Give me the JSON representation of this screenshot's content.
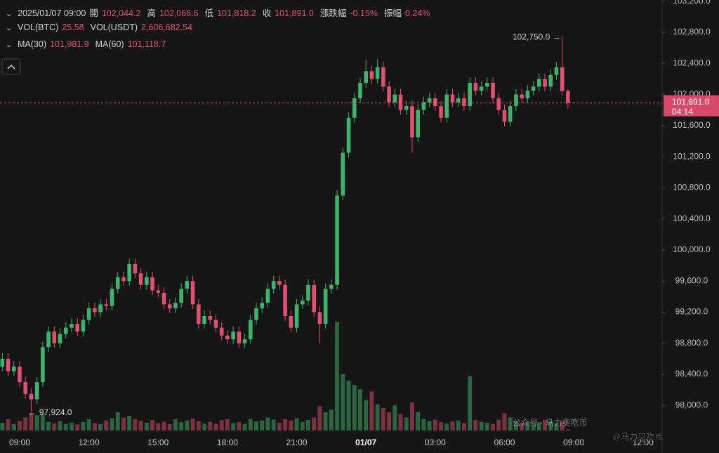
{
  "chart_data": {
    "type": "candlestick",
    "header": {
      "time": "2025/01/07 09:00",
      "fields": [
        {
          "name": "開",
          "value": "102,044.2"
        },
        {
          "name": "高",
          "value": "102,066.6"
        },
        {
          "name": "低",
          "value": "101,818.2"
        },
        {
          "name": "收",
          "value": "101,891.0"
        },
        {
          "name": "漲跌幅",
          "value": "-0.15%"
        },
        {
          "name": "振幅",
          "value": "0.24%"
        }
      ]
    },
    "volume_legend": [
      {
        "name": "VOL(BTC)",
        "value": "25.58"
      },
      {
        "name": "VOL(USDT)",
        "value": "2,606,682.54"
      }
    ],
    "ma_legend": [
      {
        "name": "MA(30)",
        "value": "101,981.9"
      },
      {
        "name": "MA(60)",
        "value": "101,118.7"
      }
    ],
    "categories": [
      null,
      null,
      null,
      "09:00",
      null,
      null,
      null,
      null,
      null,
      null,
      null,
      null,
      null,
      null,
      null,
      "12:00",
      null,
      null,
      null,
      null,
      null,
      null,
      null,
      null,
      null,
      null,
      null,
      "15:00",
      null,
      null,
      null,
      null,
      null,
      null,
      null,
      null,
      null,
      null,
      null,
      "18:00",
      null,
      null,
      null,
      null,
      null,
      null,
      null,
      null,
      null,
      null,
      null,
      "21:00",
      null,
      null,
      null,
      null,
      null,
      null,
      null,
      null,
      null,
      null,
      null,
      "01/07",
      null,
      null,
      null,
      null,
      null,
      null,
      null,
      null,
      null,
      null,
      null,
      "03:00",
      null,
      null,
      null,
      null,
      null,
      null,
      null,
      null,
      null,
      null,
      null,
      "06:00",
      null,
      null,
      null,
      null,
      null,
      null,
      null,
      null,
      null,
      null,
      null,
      "09:00",
      null,
      null,
      null,
      null,
      null,
      null,
      null,
      null,
      null,
      null,
      null,
      "12:00"
    ],
    "open": [
      98500,
      98600,
      98440,
      98500,
      98300,
      98150,
      98080,
      98300,
      98750,
      98950,
      98800,
      98920,
      99000,
      99050,
      98950,
      99100,
      99250,
      99200,
      99300,
      99280,
      99500,
      99650,
      99600,
      99820,
      99700,
      99550,
      99650,
      99480,
      99450,
      99300,
      99250,
      99320,
      99500,
      99600,
      99300,
      99050,
      99150,
      99100,
      99000,
      98900,
      98850,
      98950,
      98800,
      98850,
      99100,
      99250,
      99320,
      99500,
      99600,
      99550,
      99150,
      99000,
      99300,
      99350,
      99550,
      99200,
      99050,
      99500,
      99550,
      100700,
      101250,
      101700,
      101950,
      102150,
      102300,
      102200,
      102350,
      102100,
      101900,
      102000,
      101800,
      101850,
      101450,
      101800,
      101900,
      101950,
      101850,
      101700,
      102000,
      101900,
      101950,
      101850,
      102150,
      102050,
      102100,
      102150,
      101950,
      101800,
      101650,
      101850,
      102000,
      101950,
      102050,
      102100,
      102200,
      102100,
      102250,
      102350,
      102044.2,
      null,
      null,
      null,
      null,
      null,
      null,
      null,
      null,
      null,
      null,
      null,
      null,
      null
    ],
    "high": [
      98670,
      98670,
      98570,
      98570,
      98370,
      98220,
      98370,
      98820,
      99020,
      99020,
      98990,
      99070,
      99120,
      99120,
      99170,
      99320,
      99320,
      99370,
      99370,
      99570,
      99720,
      99720,
      99890,
      99890,
      99770,
      99720,
      99720,
      99550,
      99520,
      99370,
      99390,
      99570,
      99670,
      99670,
      99370,
      99220,
      99220,
      99170,
      99070,
      98970,
      99020,
      99020,
      98920,
      99170,
      99320,
      99390,
      99570,
      99670,
      99670,
      99620,
      99220,
      99370,
      99420,
      99620,
      99620,
      99270,
      99570,
      99620,
      100770,
      101320,
      101770,
      102020,
      102220,
      102450,
      102370,
      102450,
      102420,
      102170,
      102070,
      102070,
      101920,
      101920,
      101870,
      101970,
      102020,
      102020,
      101920,
      102070,
      102070,
      102020,
      102020,
      102220,
      102220,
      102170,
      102220,
      102220,
      102020,
      101870,
      101920,
      102070,
      102070,
      102120,
      102170,
      102270,
      102270,
      102320,
      102420,
      102750,
      102066.6,
      null,
      null,
      null,
      null,
      null,
      null,
      null,
      null,
      null,
      null,
      null,
      null,
      null
    ],
    "low": [
      98440,
      98380,
      98380,
      98240,
      98090,
      97924,
      98020,
      98240,
      98690,
      98740,
      98740,
      98860,
      98940,
      98890,
      98890,
      99040,
      99140,
      99140,
      99220,
      99220,
      99440,
      99540,
      99540,
      99640,
      99490,
      99490,
      99420,
      99390,
      99240,
      99190,
      99190,
      99260,
      99440,
      99240,
      98990,
      98990,
      99040,
      98940,
      98840,
      98790,
      98790,
      98740,
      98740,
      98790,
      99040,
      99190,
      99260,
      99440,
      99490,
      99090,
      98940,
      98940,
      99240,
      99290,
      99140,
      98800,
      98990,
      99440,
      99490,
      100640,
      101190,
      101640,
      101890,
      102090,
      102140,
      102140,
      102040,
      101840,
      101840,
      101740,
      101740,
      101250,
      101390,
      101740,
      101840,
      101790,
      101640,
      101640,
      101840,
      101840,
      101790,
      101790,
      101990,
      101990,
      102040,
      101890,
      101740,
      101590,
      101590,
      101790,
      101890,
      101890,
      101990,
      102040,
      102040,
      102040,
      102190,
      101990,
      101818.2,
      null,
      null,
      null,
      null,
      null,
      null,
      null,
      null,
      null,
      null,
      null,
      null,
      null
    ],
    "close": [
      98600,
      98440,
      98500,
      98300,
      98150,
      98080,
      98300,
      98750,
      98950,
      98800,
      98920,
      99000,
      99050,
      98950,
      99100,
      99250,
      99200,
      99300,
      99280,
      99500,
      99650,
      99600,
      99820,
      99700,
      99550,
      99650,
      99480,
      99450,
      99300,
      99250,
      99320,
      99500,
      99600,
      99300,
      99050,
      99150,
      99100,
      99000,
      98900,
      98850,
      98950,
      98800,
      98850,
      99100,
      99250,
      99320,
      99500,
      99600,
      99550,
      99150,
      99000,
      99300,
      99350,
      99550,
      99200,
      99050,
      99500,
      99550,
      100700,
      101250,
      101700,
      101950,
      102150,
      102300,
      102200,
      102350,
      102100,
      101900,
      102000,
      101800,
      101850,
      101450,
      101800,
      101900,
      101950,
      101850,
      101700,
      102000,
      101900,
      101950,
      101850,
      102150,
      102050,
      102100,
      102150,
      101950,
      101800,
      101650,
      101850,
      102000,
      101950,
      102050,
      102100,
      102200,
      102100,
      102250,
      102350,
      102044.2,
      101891,
      null,
      null,
      null,
      null,
      null,
      null,
      null,
      null,
      null,
      null,
      null,
      null,
      null
    ],
    "volume": [
      180,
      260,
      150,
      220,
      300,
      400,
      350,
      380,
      200,
      160,
      220,
      150,
      180,
      140,
      200,
      260,
      170,
      150,
      230,
      280,
      420,
      300,
      340,
      260,
      220,
      180,
      240,
      170,
      200,
      150,
      260,
      190,
      230,
      280,
      220,
      160,
      200,
      150,
      240,
      260,
      170,
      190,
      150,
      260,
      210,
      230,
      300,
      250,
      180,
      260,
      230,
      280,
      200,
      240,
      300,
      560,
      420,
      480,
      2500,
      1300,
      1150,
      1050,
      950,
      700,
      900,
      600,
      520,
      420,
      580,
      380,
      300,
      650,
      420,
      260,
      220,
      250,
      190,
      160,
      210,
      230,
      170,
      1250,
      240,
      200,
      180,
      150,
      250,
      400,
      300,
      220,
      180,
      200,
      160,
      190,
      240,
      220,
      170,
      200,
      25.58,
      null,
      null,
      null,
      null,
      null,
      null,
      null,
      null,
      null,
      null,
      null,
      null,
      null
    ],
    "volume_lim": [
      0,
      3200
    ],
    "up_color": "#3fb36b",
    "down_color": "#e0506f",
    "ylim": [
      97660,
      103215
    ],
    "yticks": [
      {
        "value": 98000,
        "label": "98,000.0"
      },
      {
        "value": 98400,
        "label": "98,400.0"
      },
      {
        "value": 98800,
        "label": "98,800.0"
      },
      {
        "value": 99200,
        "label": "99,200.0"
      },
      {
        "value": 99600,
        "label": "99,600.0"
      },
      {
        "value": 100000,
        "label": "100,000.0"
      },
      {
        "value": 100400,
        "label": "100,400.0"
      },
      {
        "value": 100800,
        "label": "100,800.0"
      },
      {
        "value": 101200,
        "label": "101,200.0"
      },
      {
        "value": 101600,
        "label": "101,600.0"
      },
      {
        "value": 102000,
        "label": "102,000.0"
      },
      {
        "value": 102400,
        "label": "102,400.0"
      },
      {
        "value": 102800,
        "label": "102,800.0"
      },
      {
        "value": 103200,
        "label": "103,200.0"
      }
    ],
    "grid": false,
    "high_annotation": "102,750.0 →",
    "low_annotation": "← 97,924.0",
    "last_price": {
      "value": 101891,
      "label": "101,891.0"
    },
    "countdown": "04:14",
    "watermark": [
      "公众号 · 马力奥吃币",
      "@马力奥吃币"
    ]
  }
}
